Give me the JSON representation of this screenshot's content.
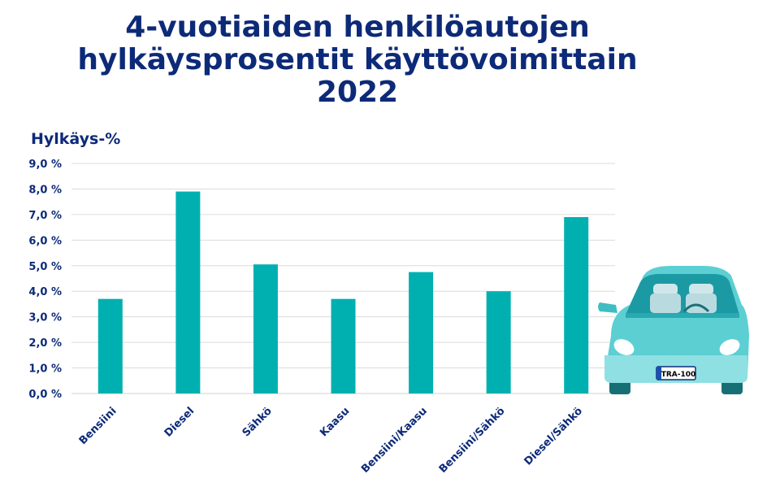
{
  "chart_data": {
    "type": "bar",
    "title": "4-vuotiaiden henkilöautojen hylkäysprosentit käyttövoimittain 2022",
    "title_lines": [
      "4-vuotiaiden henkilöautojen",
      "hylkäysprosentit käyttövoimittain",
      "2022"
    ],
    "ylabel": "Hylkäys-%",
    "xlabel": "",
    "categories": [
      "Bensiini",
      "Diesel",
      "Sähkö",
      "Kaasu",
      "Bensiini/Kaasu",
      "Bensiini/Sähkö",
      "Diesel/Sähkö"
    ],
    "values": [
      3.7,
      7.9,
      5.05,
      3.7,
      4.75,
      4.0,
      6.9
    ],
    "ylim": [
      0,
      9
    ],
    "yticks": [
      "0,0 %",
      "1,0 %",
      "2,0 %",
      "3,0 %",
      "4,0 %",
      "5,0 %",
      "6,0 %",
      "7,0 %",
      "8,0 %",
      "9,0 %"
    ],
    "grid": true,
    "bar_color": "#00b0b0",
    "title_color": "#0d2a78"
  },
  "illustration": {
    "icon": "car-icon",
    "plate_text": "TRA-100",
    "body_color": "#5ccfd3"
  }
}
